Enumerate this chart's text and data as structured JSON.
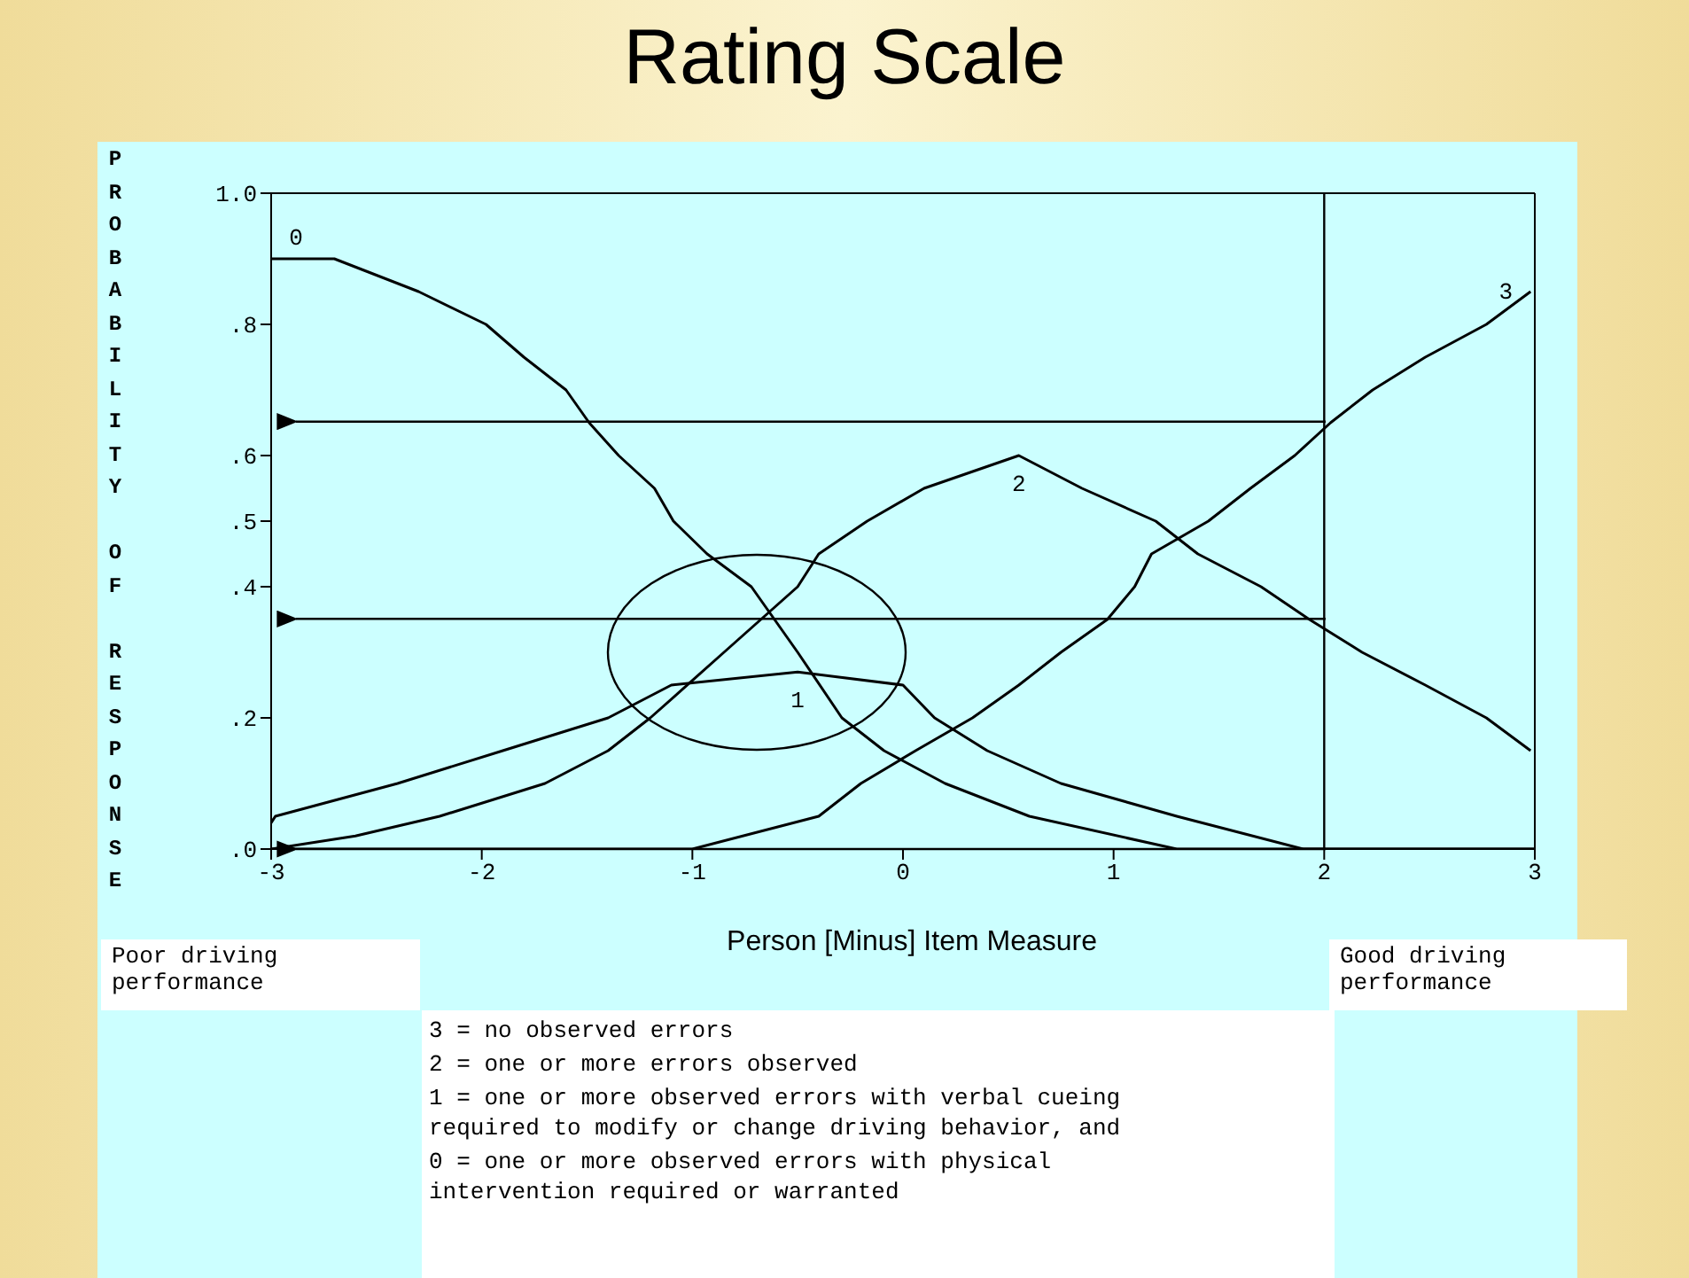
{
  "chart_data": {
    "type": "line",
    "title": "Rating Scale",
    "xlabel": "Person [Minus] Item Measure",
    "ylabel": "PROBABILITY OF RESPONSE",
    "xlim": [
      -3,
      3
    ],
    "xticks": [
      -3,
      -2,
      -1,
      0,
      1,
      2,
      3
    ],
    "ylim": [
      0,
      1
    ],
    "yticks": [
      {
        "value": 1,
        "label": "1.0"
      },
      {
        "value": 0.8,
        "label": ".8"
      },
      {
        "value": 0.6,
        "label": ".6"
      },
      {
        "value": 0.5,
        "label": ".5"
      },
      {
        "value": 0.4,
        "label": ".4"
      },
      {
        "value": 0.2,
        "label": ".2"
      },
      {
        "value": 0,
        "label": ".0"
      }
    ],
    "grid": false,
    "ref_lines": [
      {
        "axis": "x",
        "value": 2
      }
    ],
    "legend": false,
    "marker": "none",
    "line_style": "solid",
    "series": [
      {
        "name": "0",
        "color": "#000000",
        "x": [
          -3,
          -2.7,
          -2.3,
          -1.98,
          -1.8,
          -1.6,
          -1.49,
          -1.35,
          -1.18,
          -1.09,
          -0.93,
          -0.72,
          -0.5,
          -0.29,
          -0.09,
          0.2,
          0.6,
          1.3,
          2,
          3
        ],
        "values": [
          0.9,
          0.9,
          0.85,
          0.8,
          0.75,
          0.7,
          0.65,
          0.6,
          0.55,
          0.5,
          0.45,
          0.4,
          0.3,
          0.2,
          0.15,
          0.1,
          0.05,
          0,
          0,
          0
        ]
      },
      {
        "name": "1",
        "color": "#000000",
        "x": [
          -3,
          -2.98,
          -2.4,
          -1.9,
          -1.4,
          -1.1,
          -0.5,
          0,
          0.15,
          0.4,
          0.75,
          1.3,
          1.9,
          3
        ],
        "values": [
          0.04,
          0.05,
          0.1,
          0.15,
          0.2,
          0.25,
          0.27,
          0.25,
          0.2,
          0.15,
          0.1,
          0.05,
          0,
          0
        ]
      },
      {
        "name": "2",
        "color": "#000000",
        "x": [
          -3,
          -2.6,
          -2.2,
          -1.7,
          -1.4,
          -1.2,
          -0.85,
          -0.5,
          -0.4,
          -0.17,
          0.1,
          0.55,
          0.85,
          1.2,
          1.4,
          1.7,
          1.93,
          2.18,
          2.48,
          2.77,
          2.98
        ],
        "values": [
          0,
          0.02,
          0.05,
          0.1,
          0.15,
          0.2,
          0.3,
          0.4,
          0.45,
          0.5,
          0.55,
          0.6,
          0.55,
          0.5,
          0.45,
          0.4,
          0.35,
          0.3,
          0.25,
          0.2,
          0.15
        ]
      },
      {
        "name": "3",
        "color": "#000000",
        "x": [
          -3,
          -1,
          -0.4,
          -0.2,
          0.06,
          0.33,
          0.55,
          0.75,
          0.97,
          1.1,
          1.18,
          1.45,
          1.65,
          1.86,
          2.03,
          2.23,
          2.48,
          2.77,
          2.98
        ],
        "values": [
          0,
          0,
          0.05,
          0.1,
          0.15,
          0.2,
          0.25,
          0.3,
          0.35,
          0.4,
          0.45,
          0.5,
          0.55,
          0.6,
          0.65,
          0.7,
          0.75,
          0.8,
          0.85
        ]
      }
    ],
    "annotations": [
      "Poor driving performance",
      "Good driving performance",
      "3 = no observed errors",
      "2 = one or more errors observed",
      "1 = one or more observed errors with verbal cueing required to modify or change driving behavior, and",
      "0 = one or more observed errors with physical intervention required or warranted"
    ]
  }
}
